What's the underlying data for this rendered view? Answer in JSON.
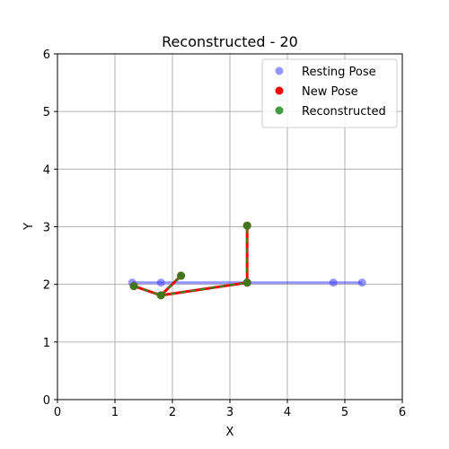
{
  "chart_data": {
    "type": "scatter",
    "title": "Reconstructed - 20",
    "xlabel": "X",
    "ylabel": "Y",
    "xlim": [
      0,
      6
    ],
    "ylim": [
      0,
      6
    ],
    "xticks": [
      "0",
      "1",
      "2",
      "3",
      "4",
      "5",
      "6"
    ],
    "yticks": [
      "0",
      "1",
      "2",
      "3",
      "4",
      "5",
      "6"
    ],
    "grid": true,
    "legend_position": "top-right",
    "series": [
      {
        "name": "Resting Pose",
        "color": "#4040ff",
        "marker_alpha": 0.55,
        "line_alpha": 0.55,
        "points": [
          [
            1.3,
            2.03
          ],
          [
            1.8,
            2.03
          ],
          [
            3.3,
            2.03
          ],
          [
            4.8,
            2.03
          ],
          [
            5.3,
            2.03
          ]
        ],
        "segments": [
          [
            0,
            1
          ],
          [
            1,
            2
          ],
          [
            2,
            3
          ],
          [
            3,
            4
          ]
        ]
      },
      {
        "name": "New Pose",
        "color": "#ff0000",
        "marker_alpha": 1.0,
        "line_alpha": 1.0,
        "points": [
          [
            1.33,
            1.97
          ],
          [
            1.8,
            1.81
          ],
          [
            2.15,
            2.15
          ],
          [
            3.3,
            2.03
          ],
          [
            3.3,
            3.02
          ]
        ],
        "segments": [
          [
            0,
            1
          ],
          [
            1,
            2
          ],
          [
            1,
            3
          ],
          [
            3,
            4
          ]
        ]
      },
      {
        "name": "Reconstructed",
        "color": "#228b22",
        "marker_alpha": 0.85,
        "line_alpha": 1.0,
        "dashed": true,
        "points": [
          [
            1.33,
            1.97
          ],
          [
            1.8,
            1.81
          ],
          [
            2.15,
            2.15
          ],
          [
            3.3,
            2.03
          ],
          [
            3.3,
            3.02
          ]
        ],
        "segments": [
          [
            0,
            1
          ],
          [
            1,
            2
          ],
          [
            1,
            3
          ],
          [
            3,
            4
          ]
        ]
      }
    ]
  }
}
